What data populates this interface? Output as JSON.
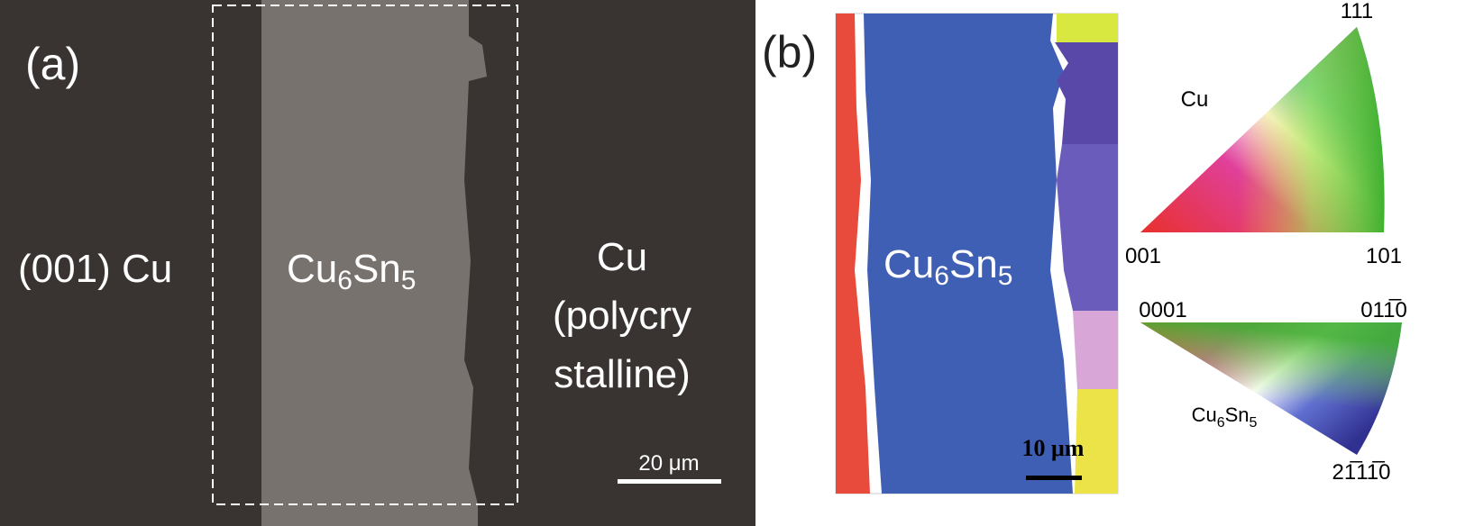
{
  "panel_a": {
    "label": "(a)",
    "left_text": "(001) Cu",
    "center_text": {
      "part1": "Cu",
      "sub1": "6",
      "part2": "Sn",
      "sub2": "5"
    },
    "right_text": [
      "Cu",
      "(polycry",
      "stalline)"
    ],
    "scale_bar": "20 μm"
  },
  "panel_b": {
    "label": "(b)",
    "map_text": {
      "part1": "Cu",
      "sub1": "6",
      "part2": "Sn",
      "sub2": "5"
    },
    "scale_bar": "10 μm"
  },
  "legend_cu": {
    "name": "Cu",
    "corners": [
      "111",
      "001",
      "101"
    ]
  },
  "legend_cu6sn5": {
    "name": {
      "part1": "Cu",
      "sub1": "6",
      "part2": "Sn",
      "sub2": "5"
    },
    "corners": [
      "0001",
      "011̅0",
      "21̅11̅0"
    ]
  }
}
